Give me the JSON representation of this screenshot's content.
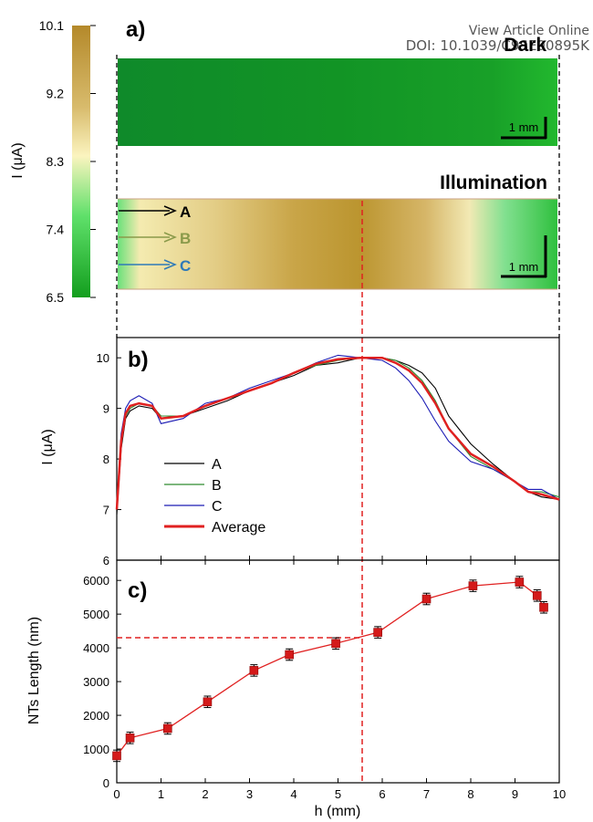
{
  "header": {
    "view_online": "View Article Online",
    "doi": "DOI: 10.1039/C9SE00895K"
  },
  "colorbar": {
    "label": "I (μA)",
    "ticks": [
      "10.1",
      "9.2",
      "8.3",
      "7.4",
      "6.5"
    ],
    "colors": [
      "#b4892a",
      "#d8bb6c",
      "#fbf4bf",
      "#5fe06a",
      "#139e1e"
    ]
  },
  "panel_a": {
    "label": "a)",
    "dark_title": "Dark",
    "illum_title": "Illumination",
    "scale_bar": "1 mm",
    "arrows": [
      {
        "label": "A",
        "color": "#000000"
      },
      {
        "label": "B",
        "color": "#8a9a4a"
      },
      {
        "label": "C",
        "color": "#2e7ab8"
      }
    ]
  },
  "chart_data": [
    {
      "type": "line",
      "panel": "b)",
      "xlim": [
        0,
        10
      ],
      "ylim": [
        6,
        10.4
      ],
      "ylabel": "I (μA)",
      "yticks": [
        "6",
        "7",
        "8",
        "9",
        "10"
      ],
      "xticks": [
        "0",
        "1",
        "2",
        "3",
        "4",
        "5",
        "6",
        "7",
        "8",
        "9",
        "10"
      ],
      "marker_x": 5.5,
      "legend_position": "bottom-left",
      "series": [
        {
          "name": "A",
          "color": "#000000",
          "x": [
            0,
            0.1,
            0.2,
            0.3,
            0.5,
            0.8,
            1.0,
            1.5,
            2.0,
            2.5,
            3.0,
            3.5,
            4.0,
            4.5,
            5.0,
            5.5,
            6.0,
            6.3,
            6.6,
            6.9,
            7.2,
            7.5,
            8.0,
            8.5,
            9.0,
            9.3,
            9.6,
            10.0
          ],
          "y": [
            6.9,
            8.2,
            8.8,
            8.95,
            9.05,
            9.0,
            8.8,
            8.85,
            9.0,
            9.15,
            9.35,
            9.5,
            9.65,
            9.85,
            9.9,
            10.0,
            10.0,
            9.95,
            9.85,
            9.7,
            9.4,
            8.85,
            8.3,
            7.9,
            7.55,
            7.35,
            7.25,
            7.2
          ]
        },
        {
          "name": "B",
          "color": "#2e8b2e",
          "x": [
            0,
            0.1,
            0.2,
            0.3,
            0.5,
            0.8,
            1.0,
            1.5,
            2.0,
            2.5,
            3.0,
            3.5,
            4.0,
            4.5,
            5.0,
            5.5,
            6.0,
            6.3,
            6.6,
            6.9,
            7.2,
            7.5,
            8.0,
            8.5,
            9.0,
            9.3,
            9.6,
            10.0
          ],
          "y": [
            7.0,
            8.3,
            8.85,
            9.0,
            9.1,
            9.05,
            8.85,
            8.85,
            9.05,
            9.2,
            9.35,
            9.5,
            9.7,
            9.85,
            9.95,
            10.0,
            10.0,
            9.95,
            9.8,
            9.55,
            9.15,
            8.6,
            8.05,
            7.8,
            7.55,
            7.35,
            7.35,
            7.25
          ]
        },
        {
          "name": "C",
          "color": "#1a1ab4",
          "x": [
            0,
            0.1,
            0.2,
            0.3,
            0.5,
            0.8,
            1.0,
            1.5,
            2.0,
            2.5,
            3.0,
            3.5,
            4.0,
            4.5,
            5.0,
            5.5,
            6.0,
            6.3,
            6.6,
            6.9,
            7.2,
            7.5,
            8.0,
            8.5,
            9.0,
            9.3,
            9.6,
            10.0
          ],
          "y": [
            7.1,
            8.5,
            9.0,
            9.15,
            9.25,
            9.1,
            8.7,
            8.8,
            9.1,
            9.2,
            9.4,
            9.55,
            9.7,
            9.9,
            10.05,
            10.0,
            9.95,
            9.8,
            9.55,
            9.2,
            8.75,
            8.35,
            7.95,
            7.8,
            7.55,
            7.4,
            7.4,
            7.2
          ]
        },
        {
          "name": "Average",
          "color": "#e02020",
          "x": [
            0,
            0.1,
            0.2,
            0.3,
            0.5,
            0.8,
            1.0,
            1.5,
            2.0,
            2.5,
            3.0,
            3.5,
            4.0,
            4.5,
            5.0,
            5.5,
            6.0,
            6.3,
            6.6,
            6.9,
            7.2,
            7.5,
            8.0,
            8.5,
            9.0,
            9.3,
            9.6,
            10.0
          ],
          "y": [
            7.0,
            8.35,
            8.9,
            9.05,
            9.1,
            9.05,
            8.8,
            8.85,
            9.05,
            9.2,
            9.35,
            9.5,
            9.7,
            9.88,
            9.97,
            10.0,
            10.0,
            9.9,
            9.75,
            9.5,
            9.1,
            8.6,
            8.1,
            7.85,
            7.55,
            7.35,
            7.3,
            7.2
          ]
        }
      ]
    },
    {
      "type": "line",
      "panel": "c)",
      "xlabel": "h (mm)",
      "ylabel": "NTs Length (nm)",
      "xlim": [
        0,
        10
      ],
      "ylim": [
        0,
        6600
      ],
      "yticks": [
        "0",
        "1000",
        "2000",
        "3000",
        "4000",
        "5000",
        "6000"
      ],
      "xticks": [
        "0",
        "1",
        "2",
        "3",
        "4",
        "5",
        "6",
        "7",
        "8",
        "9",
        "10"
      ],
      "marker_x": 5.5,
      "marker_y": 4300,
      "points": {
        "x": [
          0,
          0.3,
          1.15,
          2.05,
          3.1,
          3.9,
          4.95,
          5.9,
          7.0,
          8.05,
          9.1,
          9.5,
          9.65
        ],
        "y": [
          800,
          1330,
          1610,
          2400,
          3330,
          3800,
          4130,
          4460,
          5450,
          5840,
          5950,
          5550,
          5200
        ],
        "err": [
          170,
          170,
          170,
          170,
          170,
          170,
          170,
          170,
          170,
          170,
          170,
          170,
          170
        ]
      },
      "color": "#e02020"
    }
  ]
}
